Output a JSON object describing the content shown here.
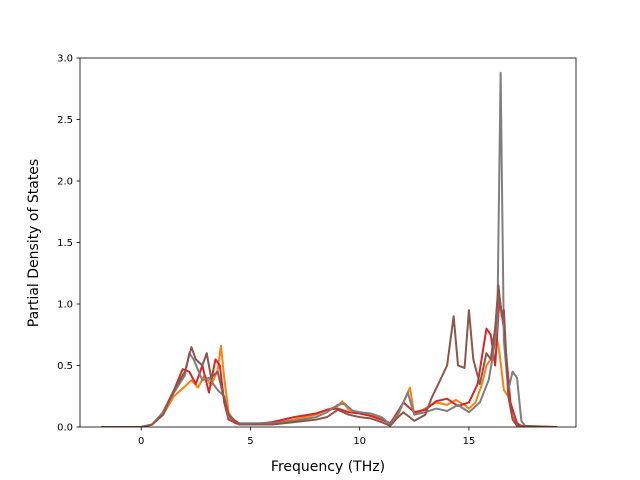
{
  "chart_data": {
    "type": "line",
    "title": "",
    "xlabel": "Frequency (THz)",
    "ylabel": "Partial Density of States",
    "xlim": [
      -2.8,
      19.9
    ],
    "ylim": [
      0,
      3.0
    ],
    "xticks": [
      0,
      5,
      10,
      15
    ],
    "yticks": [
      0.0,
      0.5,
      1.0,
      1.5,
      2.0,
      2.5,
      3.0
    ],
    "ytick_labels": [
      "0.0",
      "0.5",
      "1.0",
      "1.5",
      "2.0",
      "2.5",
      "3.0"
    ],
    "grid": false,
    "legend": "none",
    "series": [
      {
        "color": "#ff7f0e",
        "points": [
          [
            -1.8,
            0
          ],
          [
            0,
            0
          ],
          [
            0.5,
            0.02
          ],
          [
            1,
            0.1
          ],
          [
            1.5,
            0.25
          ],
          [
            2,
            0.33
          ],
          [
            2.3,
            0.38
          ],
          [
            2.6,
            0.32
          ],
          [
            2.9,
            0.42
          ],
          [
            3.2,
            0.34
          ],
          [
            3.5,
            0.46
          ],
          [
            3.65,
            0.66
          ],
          [
            3.8,
            0.4
          ],
          [
            4,
            0.12
          ],
          [
            4.3,
            0.03
          ],
          [
            5,
            0.02
          ],
          [
            6,
            0.03
          ],
          [
            7,
            0.06
          ],
          [
            8,
            0.1
          ],
          [
            8.5,
            0.14
          ],
          [
            9,
            0.17
          ],
          [
            9.2,
            0.21
          ],
          [
            9.5,
            0.14
          ],
          [
            10,
            0.12
          ],
          [
            10.5,
            0.1
          ],
          [
            11,
            0.08
          ],
          [
            11.4,
            0.02
          ],
          [
            11.7,
            0.08
          ],
          [
            12,
            0.2
          ],
          [
            12.3,
            0.32
          ],
          [
            12.5,
            0.1
          ],
          [
            13,
            0.15
          ],
          [
            13.5,
            0.2
          ],
          [
            14,
            0.18
          ],
          [
            14.4,
            0.22
          ],
          [
            14.8,
            0.18
          ],
          [
            15,
            0.15
          ],
          [
            15.3,
            0.2
          ],
          [
            15.6,
            0.35
          ],
          [
            15.8,
            0.5
          ],
          [
            16,
            0.55
          ],
          [
            16.2,
            0.8
          ],
          [
            16.4,
            0.6
          ],
          [
            16.6,
            0.3
          ],
          [
            16.8,
            0.25
          ],
          [
            17,
            0.08
          ],
          [
            17.3,
            0.01
          ],
          [
            19,
            0
          ]
        ]
      },
      {
        "color": "#d62728",
        "points": [
          [
            -1.8,
            0
          ],
          [
            0,
            0
          ],
          [
            0.5,
            0.02
          ],
          [
            1,
            0.12
          ],
          [
            1.5,
            0.3
          ],
          [
            1.9,
            0.47
          ],
          [
            2.2,
            0.45
          ],
          [
            2.5,
            0.35
          ],
          [
            2.8,
            0.5
          ],
          [
            3.1,
            0.28
          ],
          [
            3.4,
            0.55
          ],
          [
            3.6,
            0.5
          ],
          [
            3.8,
            0.2
          ],
          [
            4,
            0.06
          ],
          [
            4.5,
            0.02
          ],
          [
            5,
            0.02
          ],
          [
            6,
            0.04
          ],
          [
            7,
            0.08
          ],
          [
            8,
            0.11
          ],
          [
            8.5,
            0.14
          ],
          [
            9,
            0.15
          ],
          [
            9.5,
            0.12
          ],
          [
            10,
            0.11
          ],
          [
            10.5,
            0.09
          ],
          [
            11,
            0.06
          ],
          [
            11.4,
            0.03
          ],
          [
            11.8,
            0.14
          ],
          [
            12,
            0.2
          ],
          [
            12.5,
            0.12
          ],
          [
            13,
            0.14
          ],
          [
            13.5,
            0.21
          ],
          [
            14,
            0.23
          ],
          [
            14.5,
            0.17
          ],
          [
            15,
            0.2
          ],
          [
            15.4,
            0.35
          ],
          [
            15.8,
            0.8
          ],
          [
            16,
            0.75
          ],
          [
            16.2,
            0.5
          ],
          [
            16.4,
            1.05
          ],
          [
            16.6,
            0.8
          ],
          [
            16.9,
            0.2
          ],
          [
            17.2,
            0.03
          ],
          [
            17.5,
            0
          ],
          [
            19,
            0
          ]
        ]
      },
      {
        "color": "#7f7f7f",
        "points": [
          [
            -1.8,
            0
          ],
          [
            0,
            0
          ],
          [
            0.5,
            0.02
          ],
          [
            1,
            0.12
          ],
          [
            1.5,
            0.28
          ],
          [
            2,
            0.42
          ],
          [
            2.2,
            0.6
          ],
          [
            2.4,
            0.55
          ],
          [
            2.8,
            0.38
          ],
          [
            3.1,
            0.4
          ],
          [
            3.5,
            0.3
          ],
          [
            3.8,
            0.25
          ],
          [
            4,
            0.08
          ],
          [
            4.5,
            0.03
          ],
          [
            5,
            0.03
          ],
          [
            6,
            0.03
          ],
          [
            7,
            0.05
          ],
          [
            8,
            0.08
          ],
          [
            8.5,
            0.12
          ],
          [
            9,
            0.18
          ],
          [
            9.3,
            0.19
          ],
          [
            9.7,
            0.13
          ],
          [
            10,
            0.12
          ],
          [
            10.5,
            0.11
          ],
          [
            11,
            0.08
          ],
          [
            11.4,
            0.02
          ],
          [
            11.8,
            0.12
          ],
          [
            12.2,
            0.28
          ],
          [
            12.5,
            0.1
          ],
          [
            13,
            0.12
          ],
          [
            13.5,
            0.15
          ],
          [
            14,
            0.13
          ],
          [
            14.5,
            0.18
          ],
          [
            15,
            0.12
          ],
          [
            15.5,
            0.2
          ],
          [
            15.9,
            0.38
          ],
          [
            16.1,
            0.58
          ],
          [
            16.3,
            0.85
          ],
          [
            16.45,
            2.88
          ],
          [
            16.6,
            0.7
          ],
          [
            16.8,
            0.3
          ],
          [
            17,
            0.45
          ],
          [
            17.2,
            0.4
          ],
          [
            17.4,
            0.05
          ],
          [
            17.6,
            0
          ],
          [
            19,
            0
          ]
        ]
      },
      {
        "color": "#8c564b",
        "points": [
          [
            -1.8,
            0
          ],
          [
            0,
            0
          ],
          [
            0.5,
            0.02
          ],
          [
            1,
            0.1
          ],
          [
            1.5,
            0.3
          ],
          [
            2,
            0.45
          ],
          [
            2.3,
            0.65
          ],
          [
            2.5,
            0.55
          ],
          [
            2.8,
            0.5
          ],
          [
            3,
            0.6
          ],
          [
            3.2,
            0.4
          ],
          [
            3.5,
            0.45
          ],
          [
            3.7,
            0.3
          ],
          [
            4,
            0.1
          ],
          [
            4.5,
            0.02
          ],
          [
            5,
            0.02
          ],
          [
            6,
            0.02
          ],
          [
            7,
            0.04
          ],
          [
            8,
            0.06
          ],
          [
            8.5,
            0.08
          ],
          [
            9,
            0.14
          ],
          [
            9.5,
            0.1
          ],
          [
            10,
            0.08
          ],
          [
            10.5,
            0.07
          ],
          [
            11,
            0.04
          ],
          [
            11.4,
            0.01
          ],
          [
            11.7,
            0.07
          ],
          [
            12,
            0.12
          ],
          [
            12.5,
            0.05
          ],
          [
            13,
            0.1
          ],
          [
            13.3,
            0.24
          ],
          [
            13.6,
            0.35
          ],
          [
            14,
            0.5
          ],
          [
            14.3,
            0.9
          ],
          [
            14.5,
            0.5
          ],
          [
            14.8,
            0.48
          ],
          [
            15,
            0.95
          ],
          [
            15.2,
            0.55
          ],
          [
            15.5,
            0.35
          ],
          [
            15.8,
            0.6
          ],
          [
            16,
            0.55
          ],
          [
            16.2,
            0.8
          ],
          [
            16.35,
            1.15
          ],
          [
            16.5,
            0.9
          ],
          [
            16.6,
            0.95
          ],
          [
            16.8,
            0.25
          ],
          [
            17,
            0.06
          ],
          [
            17.2,
            0.01
          ],
          [
            19,
            0
          ]
        ]
      }
    ]
  }
}
